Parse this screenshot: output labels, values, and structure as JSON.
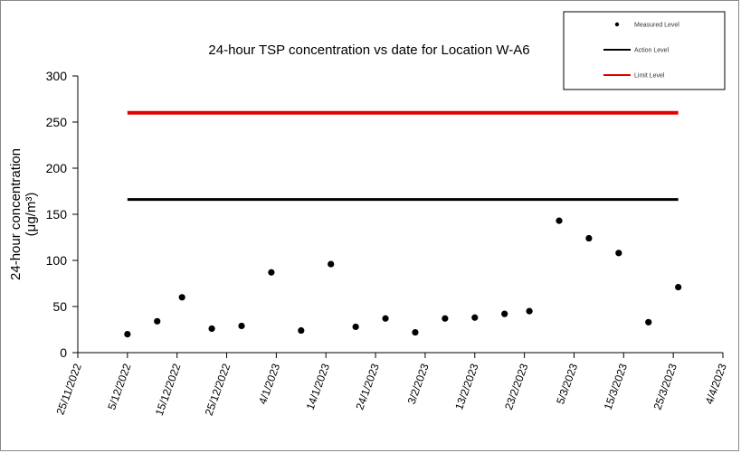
{
  "chart_data": {
    "type": "scatter",
    "title": "24-hour TSP concentration vs date for Location W-A6",
    "ylabel_line1": "24-hour concentration",
    "ylabel_line2": "(μg/m³)",
    "ylim": [
      0,
      300
    ],
    "yticks": [
      0,
      50,
      100,
      150,
      200,
      250,
      300
    ],
    "xlim": [
      "2022-11-25",
      "2023-04-04"
    ],
    "xtick_labels": [
      "25/11/2022",
      "5/12/2022",
      "15/12/2022",
      "25/12/2022",
      "4/1/2023",
      "14/1/2023",
      "24/1/2023",
      "3/2/2023",
      "13/2/2023",
      "23/2/2023",
      "5/3/2023",
      "15/3/2023",
      "25/3/2023",
      "4/4/2023"
    ],
    "grid": false,
    "legend_position": "top-right",
    "series": [
      {
        "name": "Measured Level",
        "kind": "points",
        "color": "#000000",
        "points": [
          {
            "x": "2022-12-05",
            "y": 20
          },
          {
            "x": "2022-12-11",
            "y": 34
          },
          {
            "x": "2022-12-16",
            "y": 60
          },
          {
            "x": "2022-12-22",
            "y": 26
          },
          {
            "x": "2022-12-28",
            "y": 29
          },
          {
            "x": "2023-01-03",
            "y": 87
          },
          {
            "x": "2023-01-09",
            "y": 24
          },
          {
            "x": "2023-01-15",
            "y": 96
          },
          {
            "x": "2023-01-20",
            "y": 28
          },
          {
            "x": "2023-01-26",
            "y": 37
          },
          {
            "x": "2023-02-01",
            "y": 22
          },
          {
            "x": "2023-02-07",
            "y": 37
          },
          {
            "x": "2023-02-13",
            "y": 38
          },
          {
            "x": "2023-02-19",
            "y": 42
          },
          {
            "x": "2023-02-24",
            "y": 45
          },
          {
            "x": "2023-03-02",
            "y": 143
          },
          {
            "x": "2023-03-08",
            "y": 124
          },
          {
            "x": "2023-03-14",
            "y": 108
          },
          {
            "x": "2023-03-20",
            "y": 33
          },
          {
            "x": "2023-03-26",
            "y": 71
          }
        ]
      },
      {
        "name": "Action Level",
        "kind": "line",
        "color": "#000000",
        "points": [
          {
            "x": "2022-12-05",
            "y": 166
          },
          {
            "x": "2023-03-26",
            "y": 166
          }
        ]
      },
      {
        "name": "Limit Level",
        "kind": "line",
        "color": "#e00000",
        "points": [
          {
            "x": "2022-12-05",
            "y": 260
          },
          {
            "x": "2023-03-26",
            "y": 260
          }
        ]
      }
    ]
  }
}
